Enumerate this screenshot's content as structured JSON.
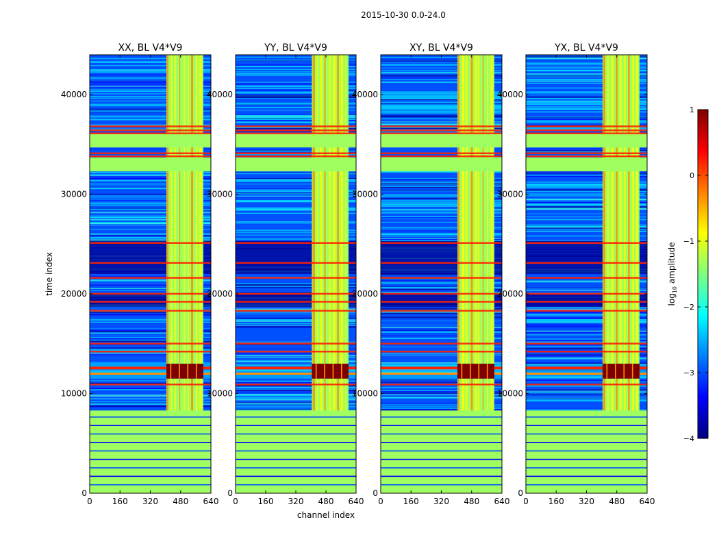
{
  "figure": {
    "suptitle": "2015-10-30 0.0-24.0",
    "ylabel": "time index",
    "xlabel": "channel index"
  },
  "colorbar": {
    "label": "log10 amplitude",
    "label_base": "log",
    "label_sub": "10",
    "label_rest": " amplitude",
    "vmin": -4,
    "vmax": 1,
    "ticks": [
      {
        "value": 1,
        "text": "1"
      },
      {
        "value": 0,
        "text": "0"
      },
      {
        "value": -1,
        "text": "−1"
      },
      {
        "value": -2,
        "text": "−2"
      },
      {
        "value": -3,
        "text": "−3"
      },
      {
        "value": -4,
        "text": "−4"
      }
    ],
    "colormap": "jet",
    "stops": [
      "#00007f",
      "#0000ff",
      "#007fff",
      "#00ffff",
      "#7fff7f",
      "#ffff00",
      "#ff7f00",
      "#ff0000",
      "#7f0000"
    ]
  },
  "chart_data": [
    {
      "type": "heatmap",
      "title": "XX, BL V4*V9",
      "xlim": [
        0,
        640
      ],
      "ylim": [
        0,
        44000
      ],
      "xticks": [
        "0",
        "160",
        "320",
        "480",
        "640"
      ],
      "yticks": [
        "0",
        "10000",
        "20000",
        "30000",
        "40000"
      ],
      "rfi_channel_band": [
        405,
        600
      ]
    },
    {
      "type": "heatmap",
      "title": "YY, BL V4*V9",
      "xlim": [
        0,
        640
      ],
      "ylim": [
        0,
        44000
      ],
      "xticks": [
        "0",
        "160",
        "320",
        "480",
        "640"
      ],
      "yticks": [
        "0",
        "10000",
        "20000",
        "30000",
        "40000"
      ],
      "rfi_channel_band": [
        405,
        600
      ]
    },
    {
      "type": "heatmap",
      "title": "XY, BL V4*V9",
      "xlim": [
        0,
        640
      ],
      "ylim": [
        0,
        44000
      ],
      "xticks": [
        "0",
        "160",
        "320",
        "480",
        "640"
      ],
      "yticks": [
        "0",
        "10000",
        "20000",
        "30000",
        "40000"
      ],
      "rfi_channel_band": [
        405,
        600
      ]
    },
    {
      "type": "heatmap",
      "title": "YX, BL V4*V9",
      "xlim": [
        0,
        640
      ],
      "ylim": [
        0,
        44000
      ],
      "xticks": [
        "0",
        "160",
        "320",
        "480",
        "640"
      ],
      "yticks": [
        "0",
        "10000",
        "20000",
        "30000",
        "40000"
      ],
      "rfi_channel_band": [
        405,
        600
      ]
    }
  ],
  "bands": {
    "flagged_rows": [
      [
        0,
        8300
      ],
      [
        32300,
        33700
      ],
      [
        34700,
        36100
      ]
    ],
    "red_rows": [
      36200,
      36500,
      36900,
      33900,
      34200,
      25200,
      23200,
      21700,
      20100,
      19300,
      18400,
      15100,
      14300,
      11000
    ],
    "burst_rows": [
      11500,
      13000
    ],
    "dark_rows": [
      [
        22000,
        25300
      ],
      [
        18700,
        20000
      ]
    ]
  }
}
